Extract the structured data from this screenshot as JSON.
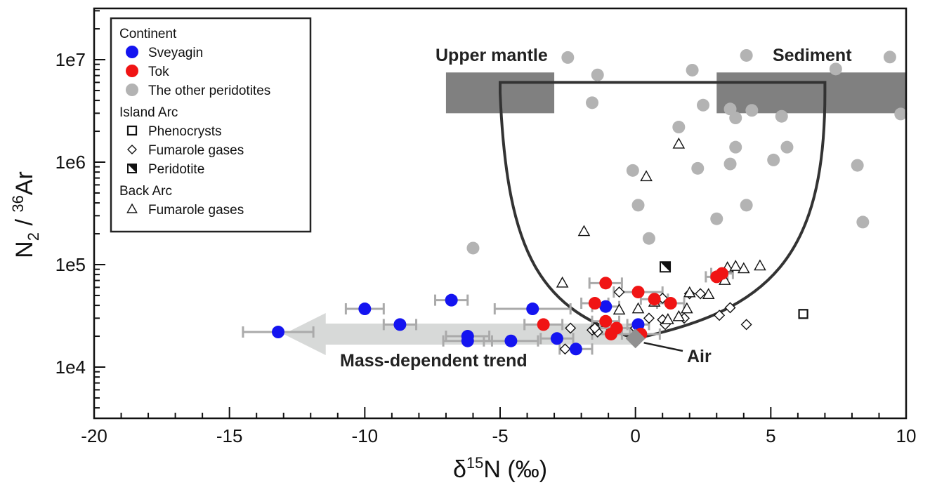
{
  "chart_data": {
    "type": "scatter",
    "title": "",
    "xlabel_prefix": "δ",
    "xlabel_sup": "15",
    "xlabel_main": "N (‰)",
    "ylabel_main": "N",
    "ylabel_sub": "2",
    "ylabel_mid": " / ",
    "ylabel_sup": "36",
    "ylabel_end": "Ar",
    "xlim": [
      -20,
      10
    ],
    "ylim_log10": [
      3.5,
      7.5
    ],
    "y_scale": "log",
    "x_ticks": [
      -20,
      -15,
      -10,
      -5,
      0,
      5,
      10
    ],
    "x_tick_labels": [
      "-20",
      "-15",
      "-10",
      "-5",
      "0",
      "5",
      "10"
    ],
    "y_ticks": [
      10000,
      100000,
      1000000,
      10000000
    ],
    "y_tick_labels": [
      "1e4",
      "1e5",
      "1e6",
      "1e7"
    ],
    "grid": false,
    "legend_position": "top-left",
    "legend": {
      "groups": [
        {
          "title": "Continent",
          "entries": [
            {
              "label": "Sveyagin",
              "marker": "circle",
              "color": "#1414f0"
            },
            {
              "label": "Tok",
              "marker": "circle",
              "color": "#f01414"
            },
            {
              "label": "The other peridotites",
              "marker": "circle",
              "color": "#b3b3b3"
            }
          ]
        },
        {
          "title": "Island Arc",
          "entries": [
            {
              "label": "Phenocrysts",
              "marker": "square-open"
            },
            {
              "label": "Fumarole gases",
              "marker": "diamond-open"
            },
            {
              "label": "Peridotite",
              "marker": "square-half"
            }
          ]
        },
        {
          "title": "Back Arc",
          "entries": [
            {
              "label": "Fumarole gases",
              "marker": "triangle-open"
            }
          ]
        }
      ]
    },
    "annotations": {
      "upper_mantle": "Upper mantle",
      "sediment": "Sediment",
      "mass_dependent": "Mass-dependent trend",
      "air": "Air"
    },
    "regions": {
      "upper_mantle": {
        "x": [
          -7,
          -3
        ],
        "y": [
          3000000,
          7500000
        ]
      },
      "sediment": {
        "x": [
          3,
          10
        ],
        "y": [
          3000000,
          7500000
        ]
      },
      "mixing_envelope_top_y": 6000000,
      "mixing_envelope_x": [
        -5,
        7
      ],
      "air_point": {
        "x": 0,
        "y": 19000
      }
    },
    "series": [
      {
        "name": "Sveyagin",
        "color": "#1414f0",
        "marker": "circle",
        "points": [
          {
            "x": -13.2,
            "y": 22000,
            "xerr": 1.3
          },
          {
            "x": -10.0,
            "y": 37000,
            "xerr": 0.7
          },
          {
            "x": -8.7,
            "y": 26000,
            "xerr": 0.6
          },
          {
            "x": -6.8,
            "y": 45000,
            "xerr": 0.6
          },
          {
            "x": -6.2,
            "y": 20000,
            "xerr": 0.8
          },
          {
            "x": -6.2,
            "y": 18000,
            "xerr": 0.9
          },
          {
            "x": -4.6,
            "y": 18000,
            "xerr": 1.0
          },
          {
            "x": -3.8,
            "y": 37000,
            "xerr": 1.4
          },
          {
            "x": -2.9,
            "y": 19000,
            "xerr": 0.6
          },
          {
            "x": -2.2,
            "y": 15000,
            "xerr": 0.6
          },
          {
            "x": -1.1,
            "y": 39000,
            "xerr": 0.5
          },
          {
            "x": 0.1,
            "y": 26000,
            "xerr": 0.4
          }
        ]
      },
      {
        "name": "Tok",
        "color": "#f01414",
        "marker": "circle",
        "points": [
          {
            "x": -3.4,
            "y": 26000,
            "xerr": 0.7
          },
          {
            "x": -1.5,
            "y": 42000,
            "xerr": 0.5
          },
          {
            "x": -1.1,
            "y": 66000,
            "xerr": 0.6
          },
          {
            "x": -1.1,
            "y": 28000,
            "xerr": 0.5
          },
          {
            "x": -0.9,
            "y": 21000,
            "xerr": 0.7
          },
          {
            "x": -0.7,
            "y": 24000,
            "xerr": 0.6
          },
          {
            "x": 0.1,
            "y": 54000,
            "xerr": 0.9
          },
          {
            "x": 0.2,
            "y": 21000,
            "xerr": 0.7
          },
          {
            "x": 0.7,
            "y": 46000,
            "xerr": 0.5
          },
          {
            "x": 1.3,
            "y": 42000,
            "xerr": 0.5
          },
          {
            "x": 3.0,
            "y": 76000,
            "xerr": 0.4
          },
          {
            "x": 3.2,
            "y": 82000,
            "xerr": 0.4
          }
        ]
      },
      {
        "name": "The other peridotites",
        "color": "#b3b3b3",
        "marker": "circle",
        "points": [
          {
            "x": -2.5,
            "y": 10500000
          },
          {
            "x": -1.4,
            "y": 7100000
          },
          {
            "x": -1.6,
            "y": 3800000
          },
          {
            "x": 2.1,
            "y": 7900000
          },
          {
            "x": 1.6,
            "y": 2200000
          },
          {
            "x": 2.5,
            "y": 3600000
          },
          {
            "x": 4.1,
            "y": 11000000
          },
          {
            "x": 3.5,
            "y": 3300000
          },
          {
            "x": 3.7,
            "y": 2700000
          },
          {
            "x": 4.3,
            "y": 3200000
          },
          {
            "x": 5.4,
            "y": 2800000
          },
          {
            "x": 5.6,
            "y": 1400000
          },
          {
            "x": 3.7,
            "y": 1400000
          },
          {
            "x": 3.5,
            "y": 960000
          },
          {
            "x": 5.1,
            "y": 1050000
          },
          {
            "x": 7.4,
            "y": 8100000
          },
          {
            "x": 9.4,
            "y": 10600000
          },
          {
            "x": 9.8,
            "y": 2950000
          },
          {
            "x": 8.2,
            "y": 930000
          },
          {
            "x": 8.4,
            "y": 260000
          },
          {
            "x": 2.3,
            "y": 870000
          },
          {
            "x": 3.0,
            "y": 280000
          },
          {
            "x": 4.1,
            "y": 380000
          },
          {
            "x": -0.1,
            "y": 830000
          },
          {
            "x": 0.1,
            "y": 380000
          },
          {
            "x": 0.5,
            "y": 180000
          },
          {
            "x": -6.0,
            "y": 145000
          }
        ]
      },
      {
        "name": "Phenocrysts",
        "marker": "square-open",
        "points": [
          {
            "x": 6.2,
            "y": 33000
          }
        ]
      },
      {
        "name": "Fumarole gases",
        "marker": "diamond-open",
        "points": [
          {
            "x": -2.4,
            "y": 24000
          },
          {
            "x": -2.6,
            "y": 15000
          },
          {
            "x": -1.6,
            "y": 23000
          },
          {
            "x": -1.4,
            "y": 22000
          },
          {
            "x": -1.5,
            "y": 24000
          },
          {
            "x": -0.6,
            "y": 54000
          },
          {
            "x": 0.0,
            "y": 24000
          },
          {
            "x": 0.2,
            "y": 22000
          },
          {
            "x": 0.5,
            "y": 30000
          },
          {
            "x": 1.0,
            "y": 29000
          },
          {
            "x": 1.1,
            "y": 26000
          },
          {
            "x": 2.0,
            "y": 52000
          },
          {
            "x": 2.4,
            "y": 52000
          },
          {
            "x": 1.8,
            "y": 30000
          },
          {
            "x": 3.1,
            "y": 32000
          },
          {
            "x": 3.5,
            "y": 38000
          },
          {
            "x": 4.1,
            "y": 26000
          },
          {
            "x": 1.0,
            "y": 47000
          }
        ]
      },
      {
        "name": "Peridotite",
        "marker": "square-half",
        "points": [
          {
            "x": 1.1,
            "y": 95000
          }
        ]
      },
      {
        "name": "Fumarole gases (Back Arc)",
        "marker": "triangle-open",
        "points": [
          {
            "x": 1.6,
            "y": 1500000
          },
          {
            "x": 0.4,
            "y": 720000
          },
          {
            "x": -1.9,
            "y": 210000
          },
          {
            "x": -2.7,
            "y": 66000
          },
          {
            "x": -0.6,
            "y": 36000
          },
          {
            "x": 0.1,
            "y": 37000
          },
          {
            "x": 0.7,
            "y": 43000
          },
          {
            "x": 1.6,
            "y": 31000
          },
          {
            "x": 1.9,
            "y": 37000
          },
          {
            "x": 2.0,
            "y": 53000
          },
          {
            "x": 2.7,
            "y": 51000
          },
          {
            "x": 3.3,
            "y": 70000
          },
          {
            "x": 3.4,
            "y": 93000
          },
          {
            "x": 3.7,
            "y": 96000
          },
          {
            "x": 4.0,
            "y": 91000
          },
          {
            "x": 4.6,
            "y": 97000
          },
          {
            "x": 1.2,
            "y": 29000
          }
        ]
      }
    ]
  }
}
